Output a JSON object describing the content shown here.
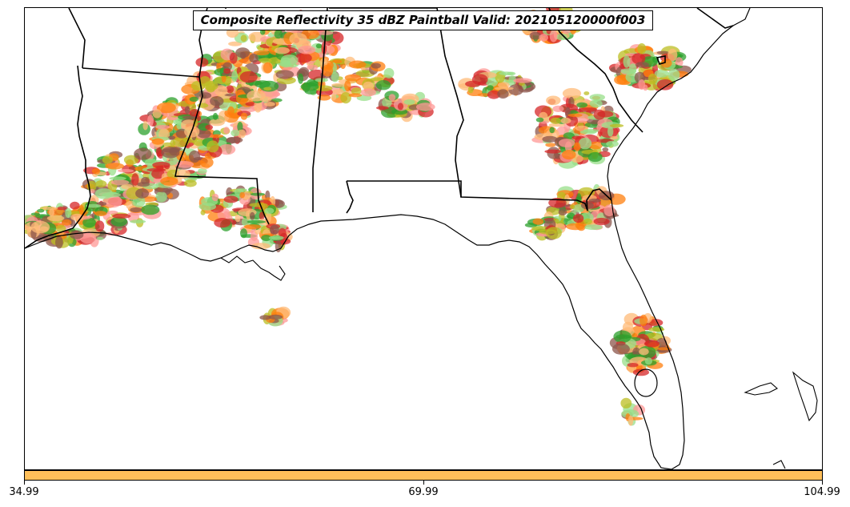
{
  "title": "Composite Reflectivity 35 dBZ Paintball Valid: 202105120000f003",
  "colorbar": {
    "color": "#ffbf5a",
    "tick_labels": [
      "34.99",
      "69.99",
      "104.99"
    ]
  },
  "legend_palette": [
    "#ff7f0e",
    "#d62728",
    "#2ca02c",
    "#8c564b",
    "#bcbd22",
    "#ff9896",
    "#98df8a",
    "#ffbb78"
  ]
}
